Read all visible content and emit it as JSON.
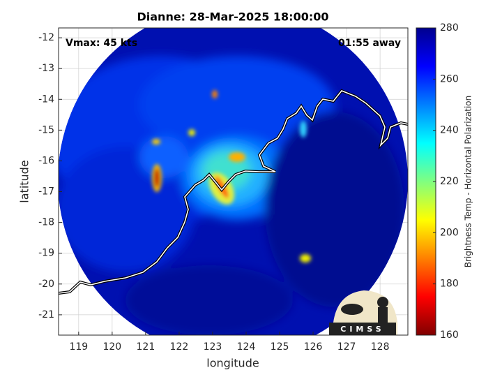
{
  "chart_data": {
    "type": "map",
    "title": "Dianne: 28-Mar-2025 18:00:00",
    "annotations": [
      "Vmax: 45 kts",
      "01:55 away"
    ],
    "xlabel": "longitude",
    "ylabel": "latitude",
    "xlim": [
      118.4,
      128.83
    ],
    "ylim": [
      -21.66,
      -11.68
    ],
    "xticks": [
      119,
      120,
      121,
      122,
      123,
      124,
      125,
      126,
      127,
      128
    ],
    "yticks": [
      -21,
      -20,
      -19,
      -18,
      -17,
      -16,
      -15,
      -14,
      -13,
      -12
    ],
    "grid": true,
    "colorbar": {
      "label": "Brightness Temp - Horizontal Polarization",
      "colormap": "jet",
      "lim": [
        160,
        280
      ],
      "ticks": [
        160,
        180,
        200,
        220,
        240,
        260,
        280
      ]
    },
    "logo": "CIMSS"
  }
}
